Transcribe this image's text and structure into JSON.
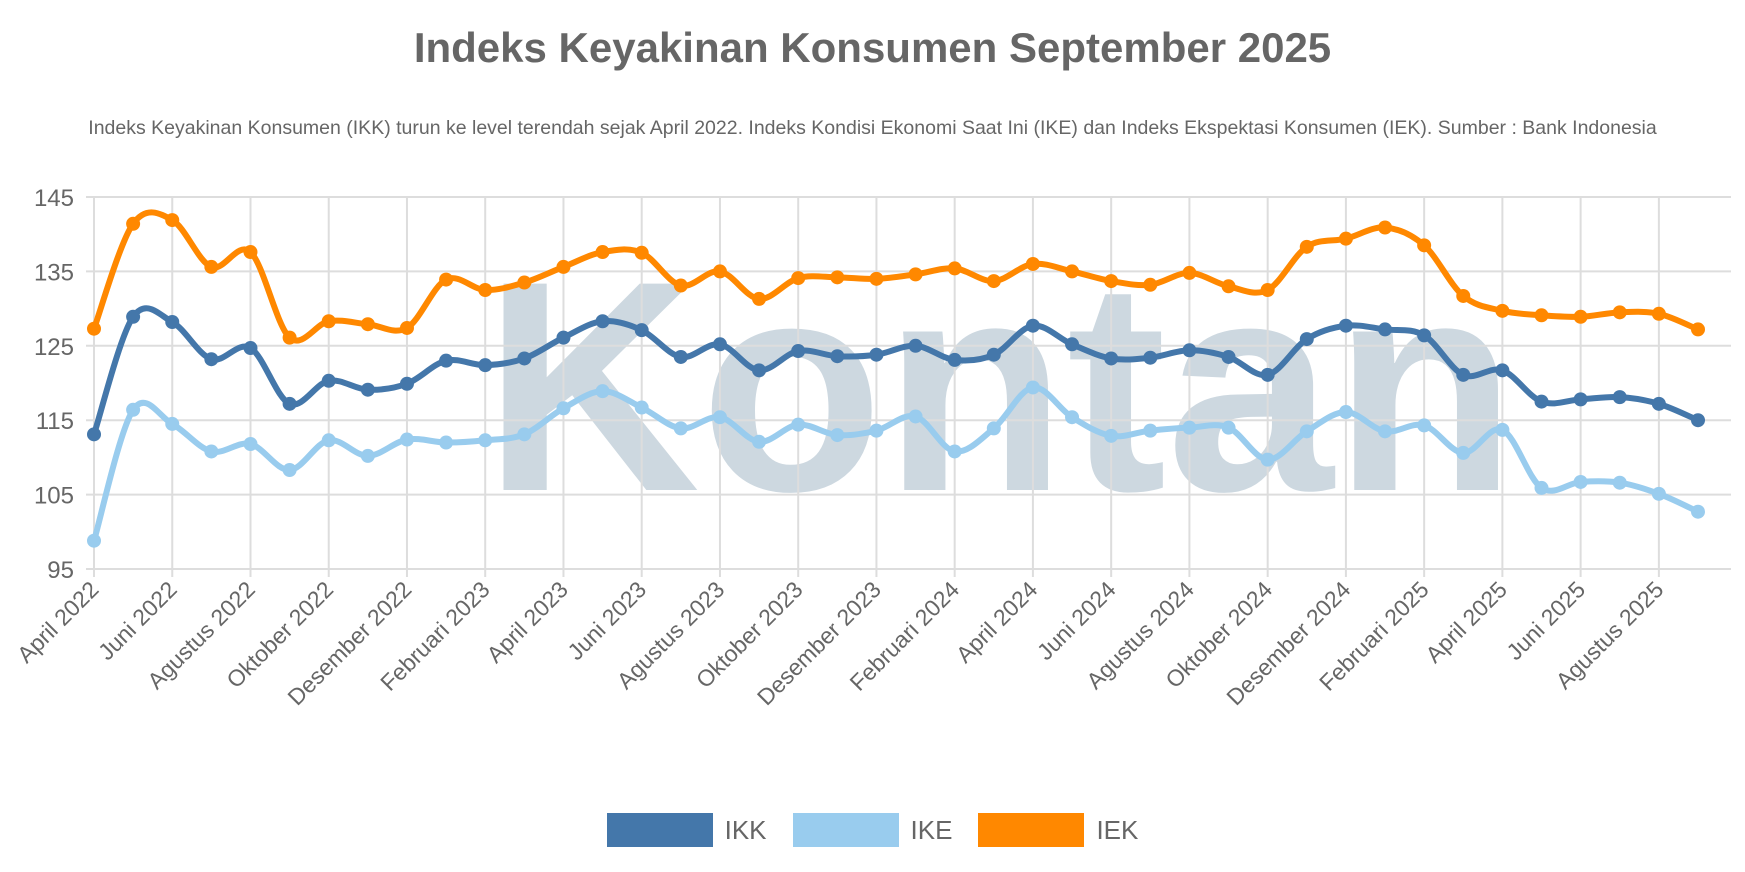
{
  "chart_data": {
    "type": "line",
    "title": "Indeks Keyakinan Konsumen September 2025",
    "subtitle": "Indeks Keyakinan Konsumen (IKK) turun ke level terendah sejak April 2022. Indeks Kondisi Ekonomi Saat Ini (IKE) dan Indeks Ekspektasi Konsumen (IEK). Sumber : Bank Indonesia",
    "watermark": "Kontan",
    "ylim": [
      95,
      145
    ],
    "yticks": [
      95,
      105,
      115,
      125,
      135,
      145
    ],
    "grid": true,
    "legend_position": "bottom",
    "x": [
      "April 2022",
      "Mei 2022",
      "Juni 2022",
      "Juli 2022",
      "Agustus 2022",
      "September 2022",
      "Oktober 2022",
      "November 2022",
      "Desember 2022",
      "Januari 2023",
      "Februari 2023",
      "Maret 2023",
      "April 2023",
      "Mei 2023",
      "Juni 2023",
      "Juli 2023",
      "Agustus 2023",
      "September 2023",
      "Oktober 2023",
      "November 2023",
      "Desember 2023",
      "Januari 2024",
      "Februari 2024",
      "Maret 2024",
      "April 2024",
      "Mei 2024",
      "Juni 2024",
      "Juli 2024",
      "Agustus 2024",
      "September 2024",
      "Oktober 2024",
      "November 2024",
      "Desember 2024",
      "Januari 2025",
      "Februari 2025",
      "Maret 2025",
      "April 2025",
      "Mei 2025",
      "Juni 2025",
      "Juli 2025",
      "Agustus 2025",
      "September 2025"
    ],
    "xtick_labels": [
      "April 2022",
      "Juni 2022",
      "Agustus 2022",
      "Oktober 2022",
      "Desember 2022",
      "Februari 2023",
      "April 2023",
      "Juni 2023",
      "Agustus 2023",
      "Oktober 2023",
      "Desember 2023",
      "Februari 2024",
      "April 2024",
      "Juni 2024",
      "Agustus 2024",
      "Oktober 2024",
      "Desember 2024",
      "Februari 2025",
      "April 2025",
      "Juni 2025",
      "Agustus 2025"
    ],
    "series": [
      {
        "name": "IKK",
        "color": "#4477aa",
        "values": [
          113.1,
          128.9,
          128.2,
          123.2,
          124.7,
          117.2,
          120.3,
          119.1,
          119.9,
          123.0,
          122.4,
          123.3,
          126.1,
          128.3,
          127.1,
          123.5,
          125.2,
          121.7,
          124.3,
          123.6,
          123.8,
          125.0,
          123.1,
          123.8,
          127.7,
          125.2,
          123.3,
          123.4,
          124.4,
          123.5,
          121.1,
          125.9,
          127.7,
          127.2,
          126.4,
          121.1,
          121.7,
          117.5,
          117.8,
          118.1,
          117.2,
          115.0
        ]
      },
      {
        "name": "IKE",
        "color": "#99ccee",
        "values": [
          98.8,
          116.4,
          114.5,
          110.8,
          111.8,
          108.3,
          112.3,
          110.2,
          112.4,
          112.0,
          112.3,
          113.1,
          116.6,
          118.9,
          116.7,
          113.9,
          115.4,
          112.1,
          114.4,
          113.0,
          113.6,
          115.5,
          110.8,
          113.9,
          119.4,
          115.4,
          112.9,
          113.6,
          114.0,
          114.0,
          109.7,
          113.5,
          116.1,
          113.5,
          114.3,
          110.6,
          113.7,
          105.9,
          106.7,
          106.6,
          105.1,
          102.7
        ]
      },
      {
        "name": "IEK",
        "color": "#ff8800",
        "values": [
          127.3,
          141.4,
          141.9,
          135.6,
          137.6,
          126.1,
          128.3,
          127.9,
          127.4,
          133.9,
          132.5,
          133.5,
          135.6,
          137.6,
          137.5,
          133.1,
          135.0,
          131.3,
          134.1,
          134.2,
          134.0,
          134.6,
          135.4,
          133.7,
          136.0,
          135.0,
          133.7,
          133.2,
          134.8,
          133.0,
          132.5,
          138.3,
          139.4,
          140.9,
          138.5,
          131.7,
          129.7,
          129.1,
          128.9,
          129.5,
          129.3,
          127.2
        ]
      }
    ]
  }
}
